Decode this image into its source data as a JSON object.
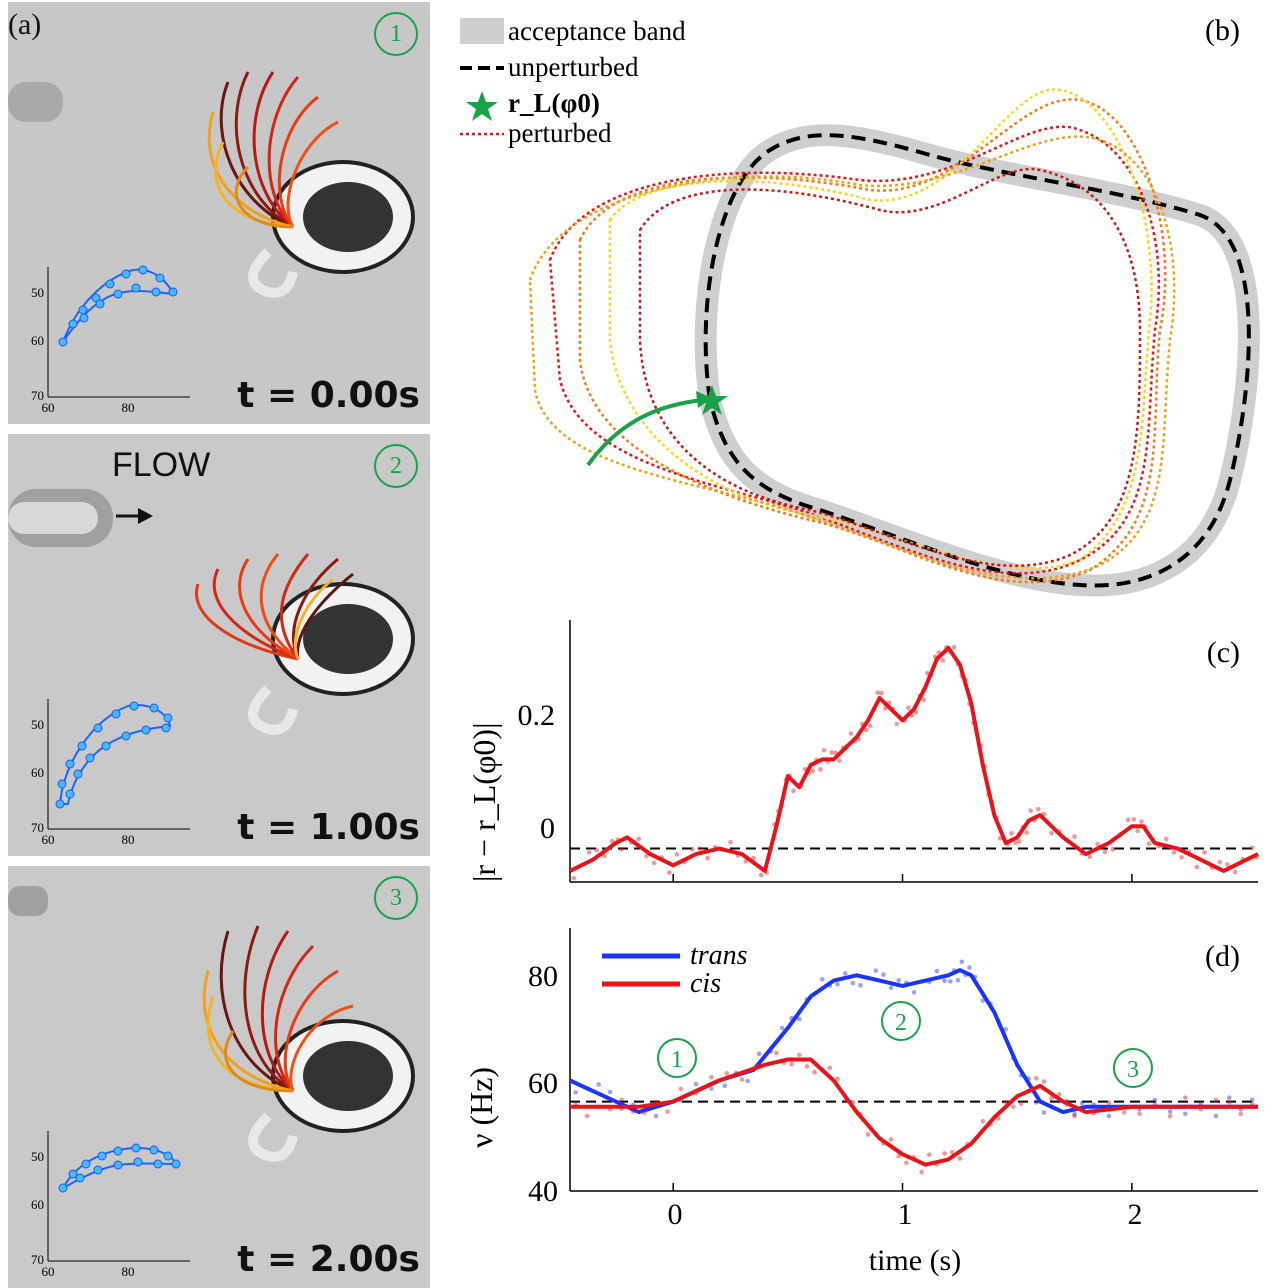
{
  "panel_a": {
    "label": "(a)",
    "frames": [
      {
        "index": "1",
        "time": "t = 0.00s",
        "flow_label": ""
      },
      {
        "index": "2",
        "time": "t = 1.00s",
        "flow_label": "FLOW"
      },
      {
        "index": "3",
        "time": "t = 2.00s",
        "flow_label": ""
      }
    ],
    "inset": {
      "xticks": [
        "60",
        "80"
      ],
      "yticks": [
        "50",
        "60",
        "70"
      ]
    }
  },
  "panel_b": {
    "label": "(b)",
    "legend": [
      "acceptance band",
      "unperturbed",
      "r_L(φ0)",
      "perturbed"
    ]
  },
  "panel_c": {
    "label": "(c)",
    "ylabel": "|r − r_L(φ0)|",
    "yticks": [
      "0.2",
      "0"
    ]
  },
  "panel_d": {
    "label": "(d)",
    "ylabel": "ν (Hz)",
    "xlabel": "time (s)",
    "yticks": [
      "80",
      "60",
      "40"
    ],
    "xticks": [
      "0",
      "1",
      "2"
    ],
    "markers": [
      "1",
      "2",
      "3"
    ],
    "legend": [
      "trans",
      "cis"
    ]
  },
  "colors": {
    "trans": "#1a33ff",
    "cis": "#e8141a",
    "accent": "#18a34a",
    "band": "#cfcfcf"
  },
  "chart_data": [
    {
      "type": "line",
      "panel": "c",
      "xlim": [
        -0.45,
        2.55
      ],
      "ylim": [
        -0.1,
        0.37
      ],
      "series": [
        {
          "name": "",
          "x": [
            -0.45,
            -0.35,
            -0.25,
            -0.2,
            -0.1,
            0,
            0.1,
            0.2,
            0.3,
            0.4,
            0.45,
            0.5,
            0.55,
            0.6,
            0.65,
            0.7,
            0.75,
            0.8,
            0.85,
            0.9,
            0.95,
            1.0,
            1.05,
            1.1,
            1.15,
            1.2,
            1.25,
            1.3,
            1.35,
            1.4,
            1.45,
            1.5,
            1.55,
            1.6,
            1.7,
            1.8,
            1.9,
            2.0,
            2.05,
            2.1,
            2.2,
            2.3,
            2.4,
            2.5,
            2.55
          ],
          "y": [
            -0.08,
            -0.06,
            -0.03,
            -0.02,
            -0.05,
            -0.07,
            -0.05,
            -0.04,
            -0.05,
            -0.08,
            0.0,
            0.09,
            0.07,
            0.11,
            0.12,
            0.12,
            0.14,
            0.16,
            0.19,
            0.23,
            0.21,
            0.19,
            0.21,
            0.25,
            0.3,
            0.32,
            0.29,
            0.22,
            0.11,
            0.02,
            -0.03,
            -0.02,
            0.01,
            0.02,
            -0.02,
            -0.05,
            -0.03,
            0.0,
            0.0,
            -0.03,
            -0.04,
            -0.06,
            -0.08,
            -0.06,
            -0.05
          ]
        }
      ],
      "reference_line": -0.04
    },
    {
      "type": "line",
      "panel": "d",
      "xlim": [
        -0.45,
        2.55
      ],
      "ylim": [
        40,
        90
      ],
      "series": [
        {
          "name": "trans",
          "x": [
            -0.45,
            -0.3,
            -0.15,
            0,
            0.2,
            0.35,
            0.5,
            0.6,
            0.7,
            0.8,
            0.9,
            1.0,
            1.1,
            1.2,
            1.25,
            1.3,
            1.4,
            1.5,
            1.6,
            1.7,
            1.8,
            2.0,
            2.2,
            2.4,
            2.55
          ],
          "y": [
            61,
            58,
            55,
            57,
            61,
            63,
            71,
            77,
            80,
            81,
            80,
            79,
            80,
            81,
            82,
            81,
            74,
            64,
            57,
            55,
            56,
            56,
            56,
            56,
            56
          ]
        },
        {
          "name": "cis",
          "x": [
            -0.45,
            -0.3,
            -0.15,
            0,
            0.2,
            0.4,
            0.5,
            0.6,
            0.7,
            0.8,
            0.9,
            1.0,
            1.1,
            1.2,
            1.3,
            1.4,
            1.5,
            1.6,
            1.7,
            1.8,
            2.0,
            2.2,
            2.4,
            2.55
          ],
          "y": [
            56,
            56,
            56,
            57,
            61,
            64,
            65,
            65,
            61,
            55,
            50,
            47,
            45,
            46,
            49,
            54,
            58,
            60,
            57,
            55,
            56,
            56,
            56,
            56
          ]
        }
      ],
      "reference_line": 57
    }
  ]
}
